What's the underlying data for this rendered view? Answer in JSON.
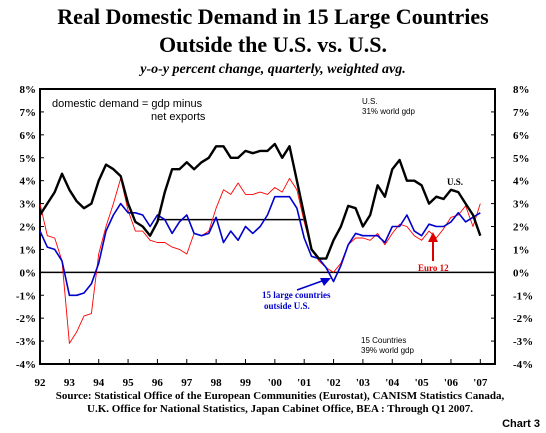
{
  "header": {
    "title_line1": "Real Domestic Demand in 15 Large Countries",
    "title_line2": "Outside the U.S. vs. U.S.",
    "subtitle": "y-o-y percent change, quarterly, weighted avg."
  },
  "source": {
    "line1": "Source:  Statistical Office of the European Communities (Eurostat), CANISM Statistics Canada,",
    "line2": "U.K. Office for National Statistics, Japan Cabinet Office, BEA :  Through Q1 2007."
  },
  "chart_number": "Chart 3",
  "chart_data": {
    "type": "line",
    "xlim": [
      1992,
      2007.5
    ],
    "ylim": [
      -4,
      8
    ],
    "x_tick_labels": [
      "92",
      "93",
      "94",
      "95",
      "96",
      "97",
      "98",
      "99",
      "'00",
      "'01",
      "'02",
      "'03",
      "'04",
      "'05",
      "'06",
      "'07"
    ],
    "y_tick_labels": [
      "8%",
      "7%",
      "6%",
      "5%",
      "4%",
      "3%",
      "2%",
      "1%",
      "0%",
      "-1%",
      "-2%",
      "-3%",
      "-4%"
    ],
    "annotations": {
      "definition_line1": "domestic demand = gdp minus",
      "definition_line2": "net exports",
      "us_weight_line1": "U.S.",
      "us_weight_line2": "31% world gdp",
      "countries_weight_line1": "15 Countries",
      "countries_weight_line2": "39% world gdp",
      "us_label": "U.S.",
      "euro_label": "Euro 12",
      "countries_label_line1": "15 large countries",
      "countries_label_line2": "outside U.S."
    },
    "reference_line": {
      "y": 2.3,
      "x_start": 1996,
      "x_end": 2001
    },
    "colors": {
      "us": "#000000",
      "countries": "#0000cc",
      "euro": "#ff0000"
    },
    "series": [
      {
        "key": "us",
        "x": [
          1992.0,
          1992.25,
          1992.5,
          1992.75,
          1993.0,
          1993.25,
          1993.5,
          1993.75,
          1994.0,
          1994.25,
          1994.5,
          1994.75,
          1995.0,
          1995.25,
          1995.5,
          1995.75,
          1996.0,
          1996.25,
          1996.5,
          1996.75,
          1997.0,
          1997.25,
          1997.5,
          1997.75,
          1998.0,
          1998.25,
          1998.5,
          1998.75,
          1999.0,
          1999.25,
          1999.5,
          1999.75,
          2000.0,
          2000.25,
          2000.5,
          2000.75,
          2001.0,
          2001.25,
          2001.5,
          2001.75,
          2002.0,
          2002.25,
          2002.5,
          2002.75,
          2003.0,
          2003.25,
          2003.5,
          2003.75,
          2004.0,
          2004.25,
          2004.5,
          2004.75,
          2005.0,
          2005.25,
          2005.5,
          2005.75,
          2006.0,
          2006.25,
          2006.5,
          2006.75,
          2007.0
        ],
        "y": [
          2.5,
          3.0,
          3.5,
          4.3,
          3.6,
          3.1,
          2.8,
          3.0,
          4.0,
          4.7,
          4.5,
          4.2,
          3.0,
          2.2,
          2.0,
          1.6,
          2.2,
          3.5,
          4.5,
          4.5,
          4.8,
          4.5,
          4.8,
          5.0,
          5.5,
          5.5,
          5.0,
          5.0,
          5.3,
          5.2,
          5.3,
          5.3,
          5.6,
          5.0,
          5.5,
          4.0,
          2.5,
          1.0,
          0.6,
          0.6,
          1.4,
          2.0,
          2.9,
          2.8,
          2.0,
          2.5,
          3.8,
          3.3,
          4.5,
          4.9,
          4.0,
          4.0,
          3.8,
          3.0,
          3.3,
          3.2,
          3.6,
          3.5,
          3.0,
          2.5,
          1.6
        ]
      },
      {
        "key": "countries",
        "x": [
          1992.0,
          1992.25,
          1992.5,
          1992.75,
          1993.0,
          1993.25,
          1993.5,
          1993.75,
          1994.0,
          1994.25,
          1994.5,
          1994.75,
          1995.0,
          1995.25,
          1995.5,
          1995.75,
          1996.0,
          1996.25,
          1996.5,
          1996.75,
          1997.0,
          1997.25,
          1997.5,
          1997.75,
          1998.0,
          1998.25,
          1998.5,
          1998.75,
          1999.0,
          1999.25,
          1999.5,
          1999.75,
          2000.0,
          2000.25,
          2000.5,
          2000.75,
          2001.0,
          2001.25,
          2001.5,
          2001.75,
          2002.0,
          2002.25,
          2002.5,
          2002.75,
          2003.0,
          2003.25,
          2003.5,
          2003.75,
          2004.0,
          2004.25,
          2004.5,
          2004.75,
          2005.0,
          2005.25,
          2005.5,
          2005.75,
          2006.0,
          2006.25,
          2006.5,
          2006.75,
          2007.0
        ],
        "y": [
          1.8,
          1.1,
          1.0,
          0.5,
          -1.0,
          -1.0,
          -0.9,
          -0.5,
          0.4,
          1.8,
          2.5,
          3.0,
          2.6,
          2.6,
          2.5,
          2.0,
          2.5,
          2.3,
          1.7,
          2.2,
          2.5,
          1.7,
          1.6,
          1.7,
          2.4,
          1.3,
          1.8,
          1.4,
          2.0,
          1.7,
          2.0,
          2.5,
          3.3,
          3.3,
          3.3,
          2.8,
          1.5,
          0.7,
          0.6,
          0.2,
          -0.4,
          0.3,
          1.2,
          1.7,
          1.6,
          1.6,
          1.6,
          1.3,
          2.0,
          2.0,
          2.5,
          1.8,
          1.6,
          2.1,
          2.0,
          2.0,
          2.2,
          2.6,
          2.2,
          2.4,
          2.6
        ]
      },
      {
        "key": "euro",
        "x": [
          1992.0,
          1992.25,
          1992.5,
          1992.75,
          1993.0,
          1993.25,
          1993.5,
          1993.75,
          1994.0,
          1994.25,
          1994.5,
          1994.75,
          1995.0,
          1995.25,
          1995.5,
          1995.75,
          1996.0,
          1996.25,
          1996.5,
          1996.75,
          1997.0,
          1997.25,
          1997.5,
          1997.75,
          1998.0,
          1998.25,
          1998.5,
          1998.75,
          1999.0,
          1999.25,
          1999.5,
          1999.75,
          2000.0,
          2000.25,
          2000.5,
          2000.75,
          2001.0,
          2001.25,
          2001.5,
          2001.75,
          2002.0,
          2002.25,
          2002.5,
          2002.75,
          2003.0,
          2003.25,
          2003.5,
          2003.75,
          2004.0,
          2004.25,
          2004.5,
          2004.75,
          2005.0,
          2005.25,
          2005.5,
          2005.75,
          2006.0,
          2006.25,
          2006.5,
          2006.75,
          2007.0
        ],
        "y": [
          3.0,
          1.6,
          1.5,
          0.5,
          -3.1,
          -2.6,
          -1.9,
          -1.8,
          0.8,
          2.0,
          3.0,
          4.1,
          2.7,
          1.8,
          1.8,
          1.4,
          1.3,
          1.3,
          1.1,
          1.0,
          0.8,
          1.7,
          1.6,
          1.8,
          2.8,
          3.6,
          3.4,
          3.9,
          3.4,
          3.4,
          3.5,
          3.4,
          3.7,
          3.5,
          4.1,
          3.6,
          2.2,
          1.0,
          0.5,
          0.2,
          0.0,
          0.4,
          1.2,
          1.5,
          1.5,
          1.4,
          1.7,
          1.2,
          1.7,
          2.1,
          2.0,
          1.6,
          1.4,
          1.8,
          1.5,
          1.9,
          2.4,
          2.5,
          2.9,
          2.0,
          3.0
        ]
      }
    ]
  }
}
